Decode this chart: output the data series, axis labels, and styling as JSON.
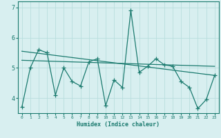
{
  "title": "",
  "xlabel": "Humidex (Indice chaleur)",
  "background_color": "#d8eff0",
  "grid_color": "#b8dede",
  "line_color": "#1a7a6e",
  "x": [
    0,
    1,
    2,
    3,
    4,
    5,
    6,
    7,
    8,
    9,
    10,
    11,
    12,
    13,
    14,
    15,
    16,
    17,
    18,
    19,
    20,
    21,
    22,
    23
  ],
  "y_main": [
    3.7,
    5.0,
    5.6,
    5.5,
    4.1,
    5.0,
    4.55,
    4.4,
    5.2,
    5.3,
    3.75,
    4.6,
    4.35,
    6.9,
    4.85,
    5.05,
    5.3,
    5.1,
    5.05,
    4.55,
    4.35,
    3.65,
    3.95,
    4.75
  ],
  "ylim": [
    3.5,
    7.2
  ],
  "yticks": [
    4,
    5,
    6,
    7
  ],
  "xlim": [
    -0.5,
    23.5
  ],
  "trend1_x": [
    0,
    23
  ],
  "trend1_y": [
    5.25,
    5.05
  ],
  "trend2_x": [
    0,
    23
  ],
  "trend2_y": [
    5.55,
    4.75
  ]
}
